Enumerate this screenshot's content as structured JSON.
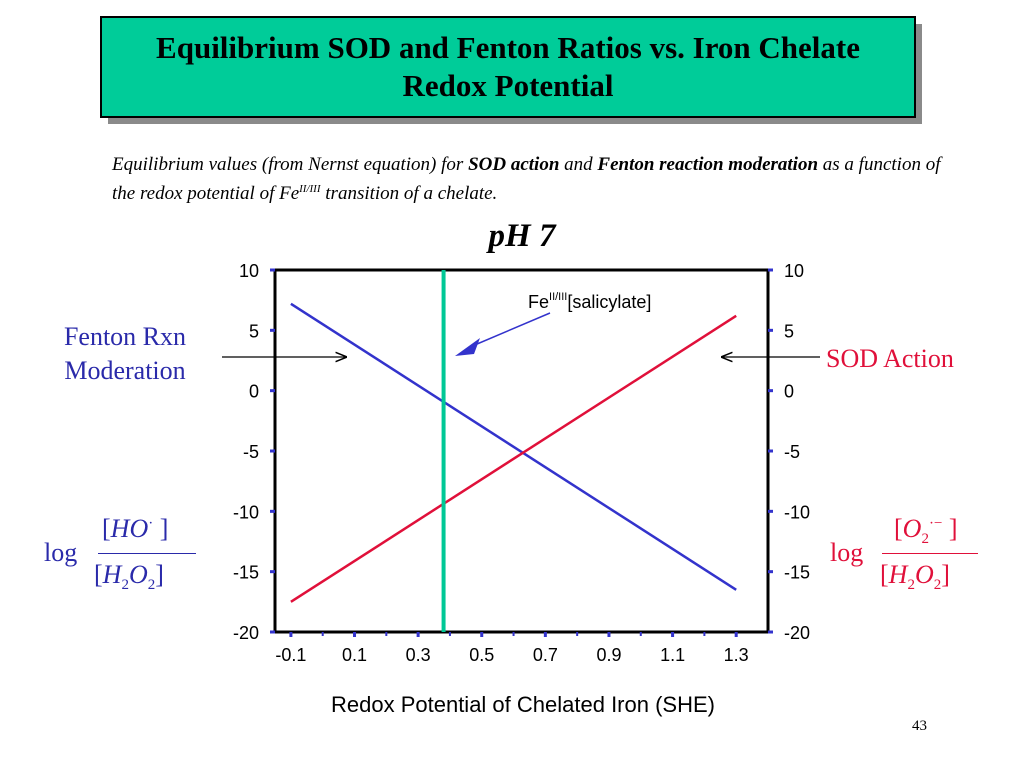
{
  "slide": {
    "title": "Equilibrium SOD and Fenton Ratios vs. Iron Chelate Redox Potential",
    "subtitle": {
      "part1": "Equilibrium values (from Nernst equation) for ",
      "bold1": "SOD action",
      "part2": " and ",
      "bold2": "Fenton reaction moderation",
      "part3": "  as a function of the redox potential of Fe",
      "sup": "II/III",
      "part4": " transition of a chelate."
    },
    "ph_label": "pH 7",
    "left_label": [
      "Fenton Rxn",
      "Moderation"
    ],
    "right_label": "SOD Action",
    "left_formula": {
      "log": "log",
      "num_a": "[",
      "num_b": "HO",
      "num_sup": "·",
      "num_c": " ]",
      "den_a": "[",
      "den_b": "H",
      "den_sub1": "2",
      "den_c": "O",
      "den_sub2": "2",
      "den_d": "]"
    },
    "right_formula": {
      "log": "log",
      "num_a": "[",
      "num_b": "O",
      "num_sub": "2",
      "num_sup": "·−",
      "num_c": " ]",
      "den_a": "[",
      "den_b": "H",
      "den_sub1": "2",
      "den_c": "O",
      "den_sub2": "2",
      "den_d": "]"
    },
    "x_axis_label": "Redox Potential of Chelated Iron (SHE)",
    "page_number": "43"
  },
  "colors": {
    "title_bg": "#00cc99",
    "fenton_line": "#3333cc",
    "sod_line": "#e0103a",
    "marker_line": "#00c896",
    "left_text": "#2a2aaa",
    "right_text": "#e0103a"
  },
  "chart_data": {
    "type": "line",
    "xlabel": "Redox Potential of Chelated Iron (SHE)",
    "ylabel_left": "log [HO·]/[H2O2]",
    "ylabel_right": "log [O2·−]/[H2O2]",
    "xlim": [
      -0.15,
      1.4
    ],
    "ylim": [
      -20,
      10
    ],
    "x_ticks": [
      "-0.1",
      "0.1",
      "0.3",
      "0.5",
      "0.7",
      "0.9",
      "1.1",
      "1.3"
    ],
    "x_tick_values": [
      -0.1,
      0.1,
      0.3,
      0.5,
      0.7,
      0.9,
      1.1,
      1.3
    ],
    "y_ticks": [
      "10",
      "5",
      "0",
      "-5",
      "-10",
      "-15",
      "-20"
    ],
    "y_tick_values": [
      10,
      5,
      0,
      -5,
      -10,
      -15,
      -20
    ],
    "series": [
      {
        "name": "Fenton Rxn Moderation",
        "x": [
          -0.1,
          1.3
        ],
        "y": [
          7.2,
          -16.5
        ]
      },
      {
        "name": "SOD Action",
        "x": [
          -0.1,
          1.3
        ],
        "y": [
          -17.5,
          6.2
        ]
      }
    ],
    "marker": {
      "x": 0.38,
      "label": "Fe",
      "label_sup": "II/III",
      "label_rest": "[salicylate]"
    }
  }
}
